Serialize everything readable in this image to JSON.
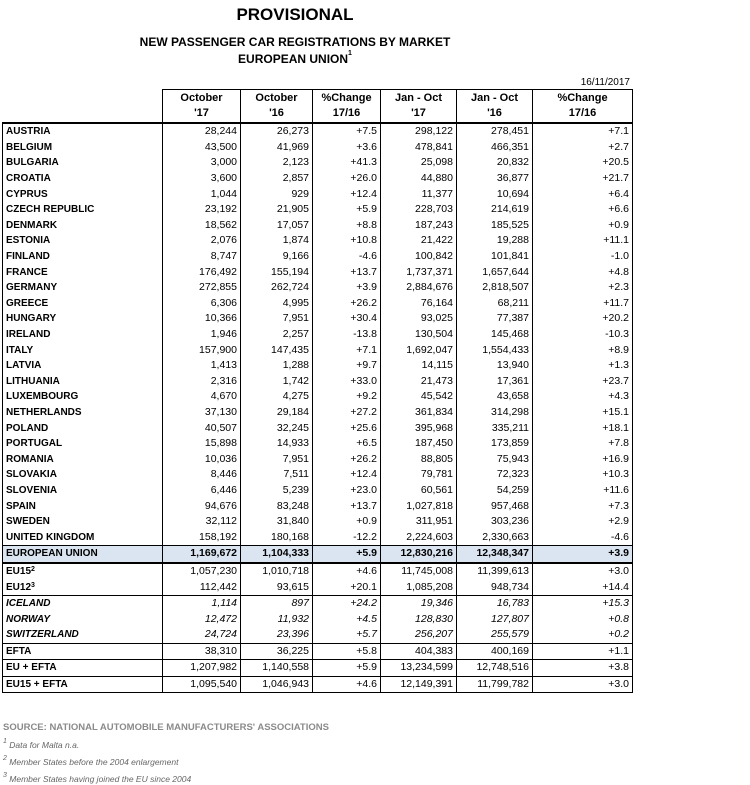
{
  "header": {
    "title": "PROVISIONAL",
    "subtitle": "NEW PASSENGER CAR REGISTRATIONS BY MARKET",
    "region": "EUROPEAN UNION",
    "region_note": "1",
    "date": "16/11/2017"
  },
  "table": {
    "columns": [
      [
        "October",
        "'17"
      ],
      [
        "October",
        "'16"
      ],
      [
        "%Change",
        "17/16"
      ],
      [
        "Jan - Oct",
        "'17"
      ],
      [
        "Jan - Oct",
        "'16"
      ],
      [
        "%Change",
        "17/16"
      ]
    ],
    "sections": [
      {
        "rows": [
          {
            "name": "AUSTRIA",
            "values": [
              "28,244",
              "26,273",
              "+7.5",
              "298,122",
              "278,451",
              "+7.1"
            ]
          },
          {
            "name": "BELGIUM",
            "values": [
              "43,500",
              "41,969",
              "+3.6",
              "478,841",
              "466,351",
              "+2.7"
            ]
          },
          {
            "name": "BULGARIA",
            "values": [
              "3,000",
              "2,123",
              "+41.3",
              "25,098",
              "20,832",
              "+20.5"
            ]
          },
          {
            "name": "CROATIA",
            "values": [
              "3,600",
              "2,857",
              "+26.0",
              "44,880",
              "36,877",
              "+21.7"
            ]
          },
          {
            "name": "CYPRUS",
            "values": [
              "1,044",
              "929",
              "+12.4",
              "11,377",
              "10,694",
              "+6.4"
            ]
          },
          {
            "name": "CZECH REPUBLIC",
            "values": [
              "23,192",
              "21,905",
              "+5.9",
              "228,703",
              "214,619",
              "+6.6"
            ]
          },
          {
            "name": "DENMARK",
            "values": [
              "18,562",
              "17,057",
              "+8.8",
              "187,243",
              "185,525",
              "+0.9"
            ]
          },
          {
            "name": "ESTONIA",
            "values": [
              "2,076",
              "1,874",
              "+10.8",
              "21,422",
              "19,288",
              "+11.1"
            ]
          },
          {
            "name": "FINLAND",
            "values": [
              "8,747",
              "9,166",
              "-4.6",
              "100,842",
              "101,841",
              "-1.0"
            ]
          },
          {
            "name": "FRANCE",
            "values": [
              "176,492",
              "155,194",
              "+13.7",
              "1,737,371",
              "1,657,644",
              "+4.8"
            ]
          },
          {
            "name": "GERMANY",
            "values": [
              "272,855",
              "262,724",
              "+3.9",
              "2,884,676",
              "2,818,507",
              "+2.3"
            ]
          },
          {
            "name": "GREECE",
            "values": [
              "6,306",
              "4,995",
              "+26.2",
              "76,164",
              "68,211",
              "+11.7"
            ]
          },
          {
            "name": "HUNGARY",
            "values": [
              "10,366",
              "7,951",
              "+30.4",
              "93,025",
              "77,387",
              "+20.2"
            ]
          },
          {
            "name": "IRELAND",
            "values": [
              "1,946",
              "2,257",
              "-13.8",
              "130,504",
              "145,468",
              "-10.3"
            ]
          },
          {
            "name": "ITALY",
            "values": [
              "157,900",
              "147,435",
              "+7.1",
              "1,692,047",
              "1,554,433",
              "+8.9"
            ]
          },
          {
            "name": "LATVIA",
            "values": [
              "1,413",
              "1,288",
              "+9.7",
              "14,115",
              "13,940",
              "+1.3"
            ]
          },
          {
            "name": "LITHUANIA",
            "values": [
              "2,316",
              "1,742",
              "+33.0",
              "21,473",
              "17,361",
              "+23.7"
            ]
          },
          {
            "name": "LUXEMBOURG",
            "values": [
              "4,670",
              "4,275",
              "+9.2",
              "45,542",
              "43,658",
              "+4.3"
            ]
          },
          {
            "name": "NETHERLANDS",
            "values": [
              "37,130",
              "29,184",
              "+27.2",
              "361,834",
              "314,298",
              "+15.1"
            ]
          },
          {
            "name": "POLAND",
            "values": [
              "40,507",
              "32,245",
              "+25.6",
              "395,968",
              "335,211",
              "+18.1"
            ]
          },
          {
            "name": "PORTUGAL",
            "values": [
              "15,898",
              "14,933",
              "+6.5",
              "187,450",
              "173,859",
              "+7.8"
            ]
          },
          {
            "name": "ROMANIA",
            "values": [
              "10,036",
              "7,951",
              "+26.2",
              "88,805",
              "75,943",
              "+16.9"
            ]
          },
          {
            "name": "SLOVAKIA",
            "values": [
              "8,446",
              "7,511",
              "+12.4",
              "79,781",
              "72,323",
              "+10.3"
            ]
          },
          {
            "name": "SLOVENIA",
            "values": [
              "6,446",
              "5,239",
              "+23.0",
              "60,561",
              "54,259",
              "+11.6"
            ]
          },
          {
            "name": "SPAIN",
            "values": [
              "94,676",
              "83,248",
              "+13.7",
              "1,027,818",
              "957,468",
              "+7.3"
            ]
          },
          {
            "name": "SWEDEN",
            "values": [
              "32,112",
              "31,840",
              "+0.9",
              "311,951",
              "303,236",
              "+2.9"
            ]
          },
          {
            "name": "UNITED KINGDOM",
            "values": [
              "158,192",
              "180,168",
              "-12.2",
              "2,224,603",
              "2,330,663",
              "-4.6"
            ]
          }
        ]
      },
      {
        "rows": [
          {
            "name": "EUROPEAN UNION",
            "values": [
              "1,169,672",
              "1,104,333",
              "+5.9",
              "12,830,216",
              "12,348,347",
              "+3.9"
            ]
          }
        ]
      },
      {
        "rows": [
          {
            "name": "EU15",
            "sup": "2",
            "values": [
              "1,057,230",
              "1,010,718",
              "+4.6",
              "11,745,008",
              "11,399,613",
              "+3.0"
            ]
          },
          {
            "name": "EU12",
            "sup": "3",
            "values": [
              "112,442",
              "93,615",
              "+20.1",
              "1,085,208",
              "948,734",
              "+14.4"
            ]
          }
        ]
      },
      {
        "rows": [
          {
            "name": "ICELAND",
            "values": [
              "1,114",
              "897",
              "+24.2",
              "19,346",
              "16,783",
              "+15.3"
            ]
          },
          {
            "name": "NORWAY",
            "values": [
              "12,472",
              "11,932",
              "+4.5",
              "128,830",
              "127,807",
              "+0.8"
            ]
          },
          {
            "name": "SWITZERLAND",
            "values": [
              "24,724",
              "23,396",
              "+5.7",
              "256,207",
              "255,579",
              "+0.2"
            ]
          }
        ]
      },
      {
        "rows": [
          {
            "name": "EFTA",
            "values": [
              "38,310",
              "36,225",
              "+5.8",
              "404,383",
              "400,169",
              "+1.1"
            ]
          }
        ]
      },
      {
        "rows": [
          {
            "name": "EU + EFTA",
            "values": [
              "1,207,982",
              "1,140,558",
              "+5.9",
              "13,234,599",
              "12,748,516",
              "+3.8"
            ]
          }
        ]
      },
      {
        "rows": [
          {
            "name": "EU15 + EFTA",
            "values": [
              "1,095,540",
              "1,046,943",
              "+4.6",
              "12,149,391",
              "11,799,782",
              "+3.0"
            ]
          }
        ]
      }
    ]
  },
  "footer": {
    "source": "SOURCE: NATIONAL AUTOMOBILE MANUFACTURERS' ASSOCIATIONS",
    "notes": [
      {
        "mark": "1",
        "text": "Data for Malta n.a."
      },
      {
        "mark": "2",
        "text": "Member States before the 2004 enlargement"
      },
      {
        "mark": "3",
        "text": "Member States having joined the EU since 2004"
      }
    ]
  }
}
